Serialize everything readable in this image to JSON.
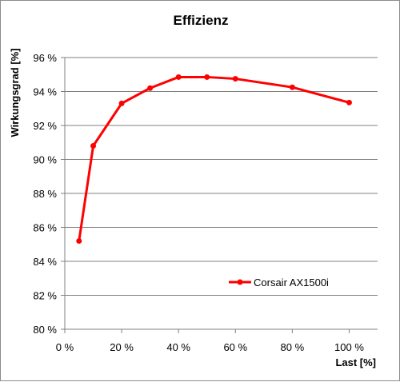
{
  "chart_data": {
    "type": "line",
    "title": "Effizienz",
    "xlabel": "Last [%]",
    "ylabel": "Wirkungsgrad [%]",
    "xlim": [
      0,
      110
    ],
    "ylim": [
      80,
      96
    ],
    "x_ticks": [
      0,
      20,
      40,
      60,
      80,
      100
    ],
    "y_ticks": [
      80,
      82,
      84,
      86,
      88,
      90,
      92,
      94,
      96
    ],
    "x_tick_labels": [
      "0 %",
      "20 %",
      "40 %",
      "60 %",
      "80 %",
      "100 %"
    ],
    "y_tick_labels": [
      "80 %",
      "82 %",
      "84 %",
      "86 %",
      "88 %",
      "90 %",
      "92 %",
      "94 %",
      "96 %"
    ],
    "grid": "horizontal",
    "legend_position": "center-right",
    "series": [
      {
        "name": "Corsair AX1500i",
        "color": "#ff0000",
        "x": [
          5,
          10,
          20,
          30,
          40,
          50,
          60,
          80,
          100
        ],
        "y": [
          85.2,
          90.8,
          93.3,
          94.2,
          94.85,
          94.85,
          94.75,
          94.25,
          93.35
        ]
      }
    ]
  }
}
